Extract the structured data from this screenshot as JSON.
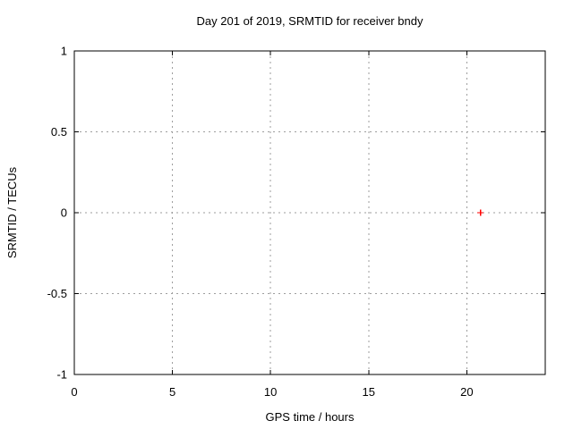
{
  "chart_data": {
    "type": "scatter",
    "title": "Day 201 of 2019, SRMTID for receiver bndy",
    "xlabel": "GPS time / hours",
    "ylabel": "SRMTID / TECUs",
    "xlim": [
      0,
      24
    ],
    "ylim": [
      -1,
      1
    ],
    "xticks": [
      {
        "value": 0,
        "label": "0"
      },
      {
        "value": 5,
        "label": "5"
      },
      {
        "value": 10,
        "label": "10"
      },
      {
        "value": 15,
        "label": "15"
      },
      {
        "value": 20,
        "label": "20"
      }
    ],
    "yticks": [
      {
        "value": -1,
        "label": "-1"
      },
      {
        "value": -0.5,
        "label": "-0.5"
      },
      {
        "value": 0,
        "label": "0"
      },
      {
        "value": 0.5,
        "label": "0.5"
      },
      {
        "value": 1,
        "label": "1"
      }
    ],
    "grid": {
      "style": "dashed",
      "color": "#9e9e9e",
      "dash": "2,4"
    },
    "axis_color": "#000000",
    "background": "#ffffff",
    "legend": "none",
    "series": [
      {
        "name": "SRMTID",
        "marker": "plus",
        "color": "#ff0000",
        "points": [
          {
            "x": 20.7,
            "y": 0.0
          }
        ]
      }
    ]
  }
}
